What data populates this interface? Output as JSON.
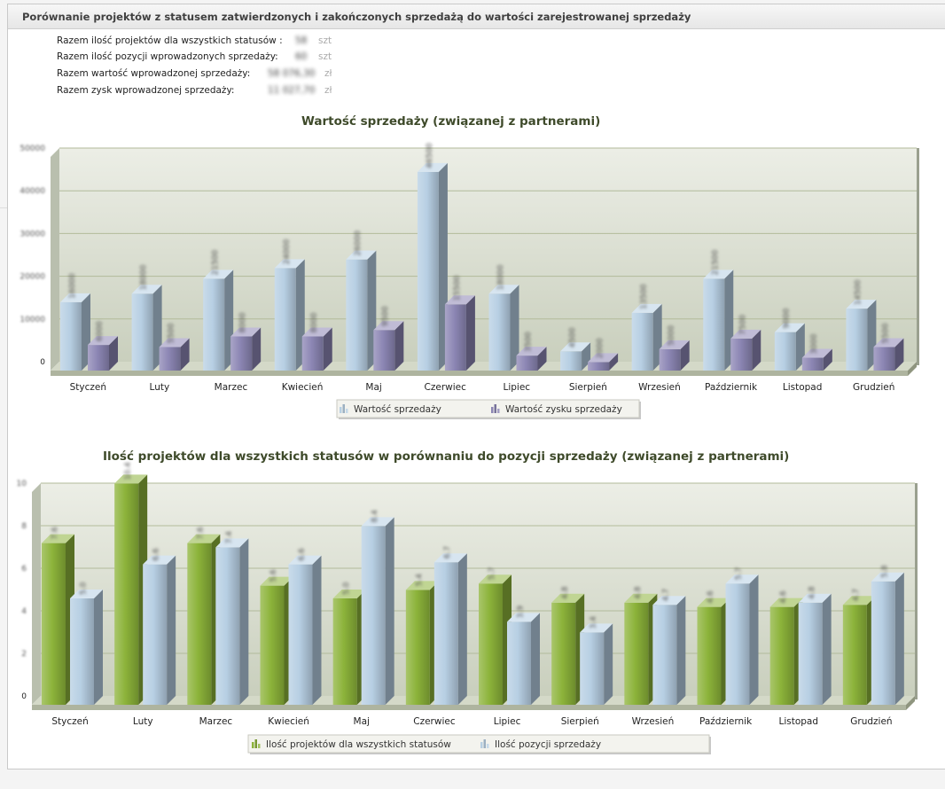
{
  "panel": {
    "title": "Porównanie projektów z statusem zatwierdzonych i zakończonych sprzedażą do wartości zarejestrowanej sprzedaży"
  },
  "summary": [
    {
      "label": "Razem ilość projektów dla wszystkich statusów :",
      "value": "58",
      "unit": "szt"
    },
    {
      "label": "Razem ilość pozycji wprowadzonych sprzedaży:",
      "value": "60",
      "unit": "szt"
    },
    {
      "label": "Razem wartość wprowadzonej sprzedaży:",
      "value": "58 076,30",
      "unit": "zł"
    },
    {
      "label": "Razem zysk wprowadzonej sprzedaży:",
      "value": "11 027,70",
      "unit": "zł"
    }
  ],
  "chart_data": [
    {
      "type": "bar",
      "title": "Wartość sprzedaży (związanej z partnerami)",
      "categories": [
        "Styczeń",
        "Luty",
        "Marzec",
        "Kwiecień",
        "Maj",
        "Czerwiec",
        "Lipiec",
        "Sierpień",
        "Wrzesień",
        "Październik",
        "Listopad",
        "Grudzień"
      ],
      "series": [
        {
          "name": "Wartość sprzedaży",
          "color": "#b7cfe3",
          "values": [
            16000,
            18000,
            21500,
            24000,
            26000,
            46500,
            18000,
            4500,
            13500,
            21500,
            9000,
            14500
          ]
        },
        {
          "name": "Wartość zysku sprzedaży",
          "color": "#8c86b4",
          "values": [
            6000,
            5500,
            8000,
            8000,
            9500,
            15500,
            3500,
            2000,
            5000,
            7500,
            3000,
            5500
          ]
        }
      ],
      "ylim": [
        0,
        50000
      ],
      "yticks": [
        "0",
        "10000",
        "20000",
        "30000",
        "40000",
        "50000"
      ],
      "grid": true,
      "legend": "bottom"
    },
    {
      "type": "bar",
      "title": "Ilość projektów  dla wszystkich statusów  w porównaniu do pozycji sprzedaży (związanej z partnerami)",
      "categories": [
        "Styczeń",
        "Luty",
        "Marzec",
        "Kwiecień",
        "Maj",
        "Czerwiec",
        "Lipiec",
        "Sierpień",
        "Wrzesień",
        "Październik",
        "Listopad",
        "Grudzień"
      ],
      "series": [
        {
          "name": "Ilość projektów  dla wszystkich statusów",
          "color": "#8cb33a",
          "values": [
            7.6,
            10.4,
            7.6,
            5.6,
            5.0,
            5.4,
            5.7,
            4.8,
            4.8,
            4.6,
            4.6,
            4.7
          ]
        },
        {
          "name": "Ilość pozycji sprzedaży",
          "color": "#b7cfe3",
          "values": [
            5.0,
            6.6,
            7.4,
            6.6,
            8.4,
            6.7,
            3.9,
            3.4,
            4.7,
            5.7,
            4.8,
            5.8
          ]
        }
      ],
      "ylim": [
        0,
        10
      ],
      "yticks": [
        "0",
        "2",
        "4",
        "6",
        "8",
        "10"
      ],
      "grid": true,
      "legend": "bottom"
    }
  ]
}
